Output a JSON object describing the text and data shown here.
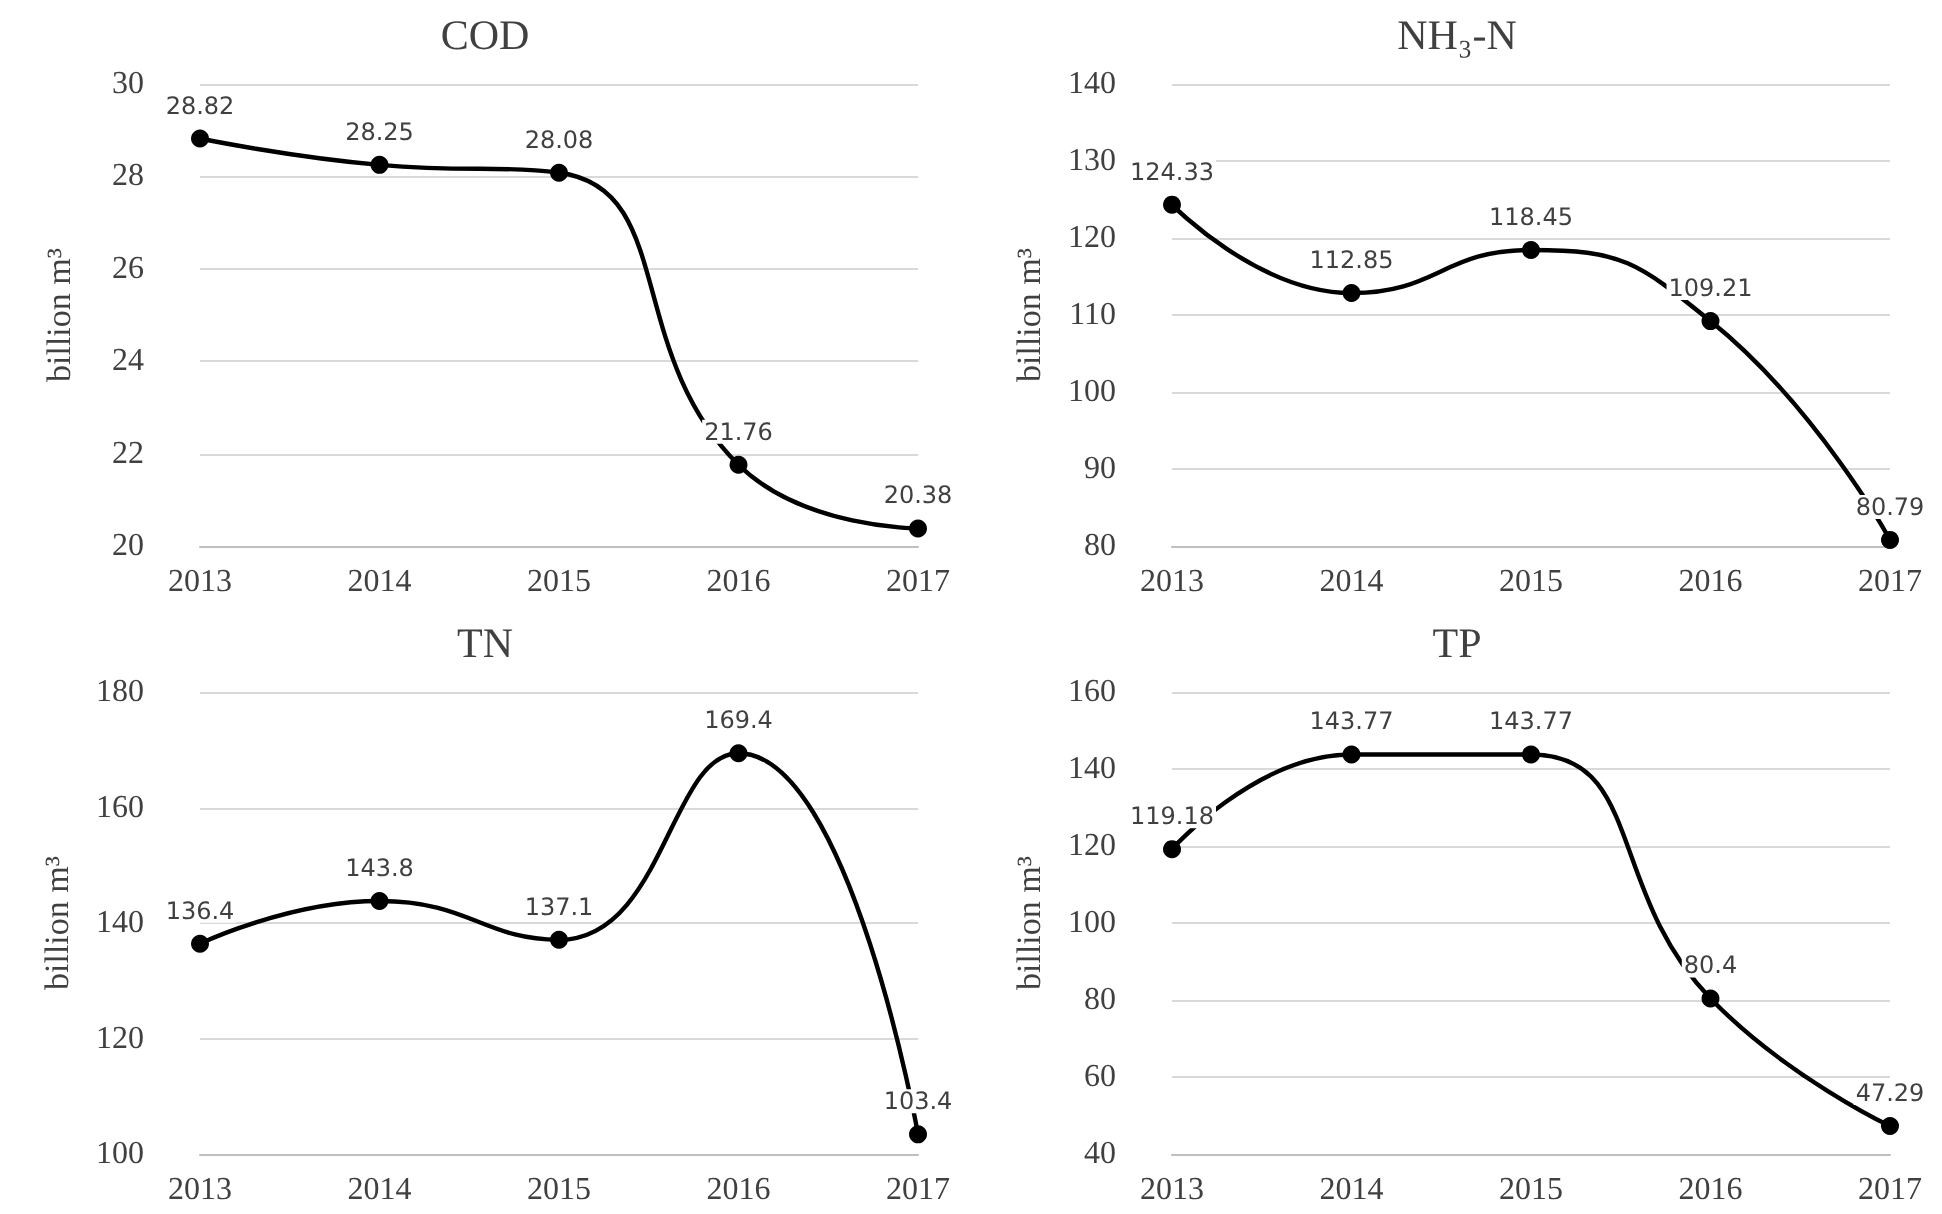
{
  "chart_data": [
    {
      "type": "line",
      "title": "COD",
      "ylabel": "billion m³",
      "categories": [
        "2013",
        "2014",
        "2015",
        "2016",
        "2017"
      ],
      "series": [
        {
          "color": "#000000",
          "values": [
            28.82,
            28.25,
            28.08,
            21.76,
            20.38
          ]
        }
      ],
      "ylim": [
        20,
        30
      ],
      "yticks": [
        20,
        22,
        24,
        26,
        28,
        30
      ],
      "grid": "y",
      "marker": "circle",
      "line_style": "solid",
      "data_labels": true
    },
    {
      "type": "line",
      "title": "NH₃-N",
      "ylabel": "billion m³",
      "categories": [
        "2013",
        "2014",
        "2015",
        "2016",
        "2017"
      ],
      "series": [
        {
          "color": "#000000",
          "values": [
            124.33,
            112.85,
            118.45,
            109.21,
            80.79
          ]
        }
      ],
      "ylim": [
        80,
        140
      ],
      "yticks": [
        80,
        90,
        100,
        110,
        120,
        130,
        140
      ],
      "grid": "y",
      "marker": "circle",
      "line_style": "solid",
      "data_labels": true
    },
    {
      "type": "line",
      "title": "TN",
      "ylabel": "billion m³",
      "categories": [
        "2013",
        "2014",
        "2015",
        "2016",
        "2017"
      ],
      "series": [
        {
          "color": "#000000",
          "values": [
            136.4,
            143.8,
            137.1,
            169.4,
            103.4
          ]
        }
      ],
      "ylim": [
        100,
        180
      ],
      "yticks": [
        100,
        120,
        140,
        160,
        180
      ],
      "grid": "y",
      "marker": "circle",
      "line_style": "solid",
      "data_labels": true
    },
    {
      "type": "line",
      "title": "TP",
      "ylabel": "billion m³",
      "categories": [
        "2013",
        "2014",
        "2015",
        "2016",
        "2017"
      ],
      "series": [
        {
          "color": "#000000",
          "values": [
            119.18,
            143.77,
            143.77,
            80.4,
            47.29
          ]
        }
      ],
      "ylim": [
        40,
        160
      ],
      "yticks": [
        40,
        60,
        80,
        100,
        120,
        140,
        160
      ],
      "grid": "y",
      "marker": "circle",
      "line_style": "solid",
      "data_labels": true
    }
  ]
}
